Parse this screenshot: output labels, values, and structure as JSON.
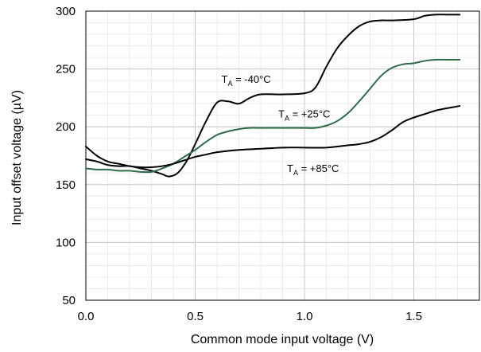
{
  "chart_data": {
    "type": "line",
    "title": "",
    "xlabel": "Common mode input voltage (V)",
    "ylabel": "Input offset voltage (µV)",
    "xlim": [
      0,
      1.8
    ],
    "ylim": [
      50,
      300
    ],
    "xticks": [
      0,
      0.5,
      1,
      1.5
    ],
    "xtick_labels": [
      "0.0",
      "0.5",
      "1.0",
      "1.5"
    ],
    "yticks": [
      50,
      100,
      150,
      200,
      250,
      300
    ],
    "ytick_labels": [
      "50",
      "100",
      "150",
      "200",
      "250",
      "300"
    ],
    "grid": true,
    "series": [
      {
        "name": "T_A = -40°C",
        "color": "#000000",
        "x": [
          0.0,
          0.05,
          0.1,
          0.15,
          0.2,
          0.25,
          0.3,
          0.35,
          0.38,
          0.42,
          0.46,
          0.5,
          0.55,
          0.6,
          0.65,
          0.7,
          0.75,
          0.8,
          0.9,
          1.0,
          1.05,
          1.1,
          1.15,
          1.2,
          1.25,
          1.3,
          1.35,
          1.4,
          1.5,
          1.55,
          1.6,
          1.65,
          1.71
        ],
        "y": [
          172,
          170,
          167,
          166,
          166,
          164,
          162,
          159,
          157,
          160,
          170,
          185,
          205,
          221,
          222,
          220,
          225,
          228,
          228,
          229,
          234,
          252,
          268,
          279,
          287,
          291,
          292,
          292,
          293,
          296,
          297,
          297,
          297
        ]
      },
      {
        "name": "T_A = +25°C",
        "color": "#2e6b4a",
        "x": [
          0.0,
          0.05,
          0.1,
          0.15,
          0.2,
          0.25,
          0.3,
          0.35,
          0.4,
          0.45,
          0.5,
          0.55,
          0.6,
          0.65,
          0.7,
          0.75,
          0.8,
          0.85,
          0.9,
          0.95,
          1.0,
          1.05,
          1.1,
          1.15,
          1.2,
          1.25,
          1.3,
          1.35,
          1.4,
          1.45,
          1.5,
          1.55,
          1.6,
          1.65,
          1.71
        ],
        "y": [
          164,
          163,
          163,
          162,
          162,
          161,
          161,
          164,
          168,
          174,
          180,
          187,
          193,
          196,
          198,
          199,
          199,
          199,
          199,
          199,
          199,
          199,
          201,
          205,
          212,
          222,
          233,
          244,
          251,
          254,
          255,
          257,
          258,
          258,
          258
        ]
      },
      {
        "name": "T_A = +85°C",
        "color": "#000000",
        "x": [
          0.0,
          0.05,
          0.1,
          0.15,
          0.2,
          0.25,
          0.3,
          0.35,
          0.4,
          0.45,
          0.5,
          0.55,
          0.6,
          0.7,
          0.8,
          0.9,
          1.0,
          1.1,
          1.2,
          1.25,
          1.3,
          1.35,
          1.4,
          1.45,
          1.5,
          1.55,
          1.6,
          1.65,
          1.71
        ],
        "y": [
          183,
          175,
          170,
          168,
          166,
          165,
          165,
          166,
          168,
          171,
          174,
          176,
          178,
          180,
          181,
          182,
          182,
          182,
          184,
          185,
          187,
          191,
          197,
          204,
          208,
          211,
          214,
          216,
          218
        ]
      }
    ],
    "annotations": [
      {
        "main": "T",
        "sub": "A",
        "rest": " = -40°C",
        "x": 0.62,
        "y": 238
      },
      {
        "main": "T",
        "sub": "A",
        "rest": " = +25°C",
        "x": 0.88,
        "y": 208
      },
      {
        "main": "T",
        "sub": "A",
        "rest": " = +85°C",
        "x": 0.92,
        "y": 161
      }
    ]
  }
}
